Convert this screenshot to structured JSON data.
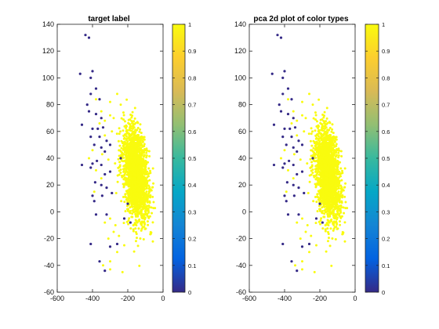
{
  "colormap": {
    "stops": [
      "#352a87",
      "#0363e1",
      "#1485d4",
      "#06a7c6",
      "#38b99e",
      "#92bf73",
      "#d9ba56",
      "#fcce2e",
      "#f9fb0e"
    ]
  },
  "chart_data": [
    {
      "type": "scatter",
      "title": "target label",
      "xlim": [
        -600,
        0
      ],
      "ylim": [
        -60,
        140
      ],
      "xticks": [
        "-600",
        "-400",
        "-200",
        "0"
      ],
      "yticks": [
        "-60",
        "-40",
        "-20",
        "0",
        "20",
        "40",
        "60",
        "80",
        "100",
        "120",
        "140"
      ],
      "colorbar_ticks": [
        "0",
        "0.1",
        "0.2",
        "0.3",
        "0.4",
        "0.5",
        "0.6",
        "0.7",
        "0.8",
        "0.9",
        "1"
      ],
      "clim": [
        0,
        1
      ],
      "grid": false,
      "marker_colors": {
        "0": "#352a87",
        "1": "#f9fb0e"
      },
      "series": [
        {
          "label_value": 0,
          "points": [
            [
              -440,
              132
            ],
            [
              -420,
              130
            ],
            [
              -470,
              103
            ],
            [
              -400,
              105
            ],
            [
              -410,
              100
            ],
            [
              -380,
              92
            ],
            [
              -410,
              88
            ],
            [
              -430,
              80
            ],
            [
              -360,
              84
            ],
            [
              -420,
              75
            ],
            [
              -380,
              73
            ],
            [
              -350,
              70
            ],
            [
              -460,
              65
            ],
            [
              -400,
              62
            ],
            [
              -370,
              62
            ],
            [
              -340,
              63
            ],
            [
              -410,
              56
            ],
            [
              -360,
              56
            ],
            [
              -390,
              50
            ],
            [
              -350,
              48
            ],
            [
              -320,
              53
            ],
            [
              -300,
              50
            ],
            [
              -330,
              45
            ],
            [
              -460,
              35
            ],
            [
              -400,
              36
            ],
            [
              -375,
              38
            ],
            [
              -410,
              33
            ],
            [
              -350,
              35
            ],
            [
              -300,
              30
            ],
            [
              -330,
              28
            ],
            [
              -385,
              22
            ],
            [
              -350,
              20
            ],
            [
              -320,
              18
            ],
            [
              -400,
              12
            ],
            [
              -345,
              12
            ],
            [
              -290,
              14
            ],
            [
              -380,
              -2
            ],
            [
              -320,
              -2
            ],
            [
              -410,
              -24
            ],
            [
              -360,
              -37
            ],
            [
              -330,
              -44
            ],
            [
              -260,
              -24
            ],
            [
              -300,
              -26
            ],
            [
              -200,
              6
            ],
            [
              -185,
              -8
            ],
            [
              -240,
              40
            ],
            [
              -220,
              -5
            ],
            [
              -390,
              8
            ]
          ]
        },
        {
          "label_value": 1,
          "center": [
            -155,
            28
          ],
          "count": 2200,
          "outliers": [
            [
              -380,
              84
            ],
            [
              -350,
              75
            ],
            [
              -330,
              68
            ],
            [
              -360,
              66
            ],
            [
              -300,
              82
            ],
            [
              -330,
              57
            ],
            [
              -400,
              46
            ],
            [
              -420,
              40
            ],
            [
              -380,
              31
            ],
            [
              -350,
              25
            ],
            [
              -390,
              15
            ],
            [
              -300,
              -5
            ],
            [
              -330,
              -8
            ],
            [
              -280,
              -15
            ],
            [
              -310,
              -20
            ],
            [
              -260,
              -30
            ],
            [
              -300,
              -37
            ],
            [
              -340,
              -40
            ],
            [
              -250,
              -18
            ],
            [
              -270,
              -10
            ],
            [
              -345,
              43
            ],
            [
              -310,
              39
            ],
            [
              -290,
              60
            ],
            [
              -280,
              70
            ],
            [
              -300,
              72
            ],
            [
              -240,
              80
            ],
            [
              -260,
              88
            ],
            [
              -230,
              -45
            ],
            [
              -300,
              -43
            ],
            [
              -220,
              -25
            ]
          ]
        }
      ]
    },
    {
      "type": "scatter",
      "title": "pca 2d plot of color types",
      "xlim": [
        -600,
        0
      ],
      "ylim": [
        -60,
        140
      ],
      "xticks": [
        "-600",
        "-400",
        "-200",
        "0"
      ],
      "yticks": [
        "-60",
        "-40",
        "-20",
        "0",
        "20",
        "40",
        "60",
        "80",
        "100",
        "120",
        "140"
      ],
      "colorbar_ticks": [
        "0",
        "0.1",
        "0.2",
        "0.3",
        "0.4",
        "0.5",
        "0.6",
        "0.7",
        "0.8",
        "0.9",
        "1"
      ],
      "clim": [
        0,
        1
      ],
      "grid": false,
      "marker_colors": {
        "0": "#352a87",
        "1": "#f9fb0e"
      },
      "series": [
        {
          "label_value": 0,
          "points": [
            [
              -440,
              132
            ],
            [
              -420,
              130
            ],
            [
              -470,
              103
            ],
            [
              -400,
              105
            ],
            [
              -410,
              100
            ],
            [
              -380,
              92
            ],
            [
              -410,
              88
            ],
            [
              -430,
              80
            ],
            [
              -360,
              84
            ],
            [
              -420,
              75
            ],
            [
              -380,
              73
            ],
            [
              -350,
              70
            ],
            [
              -460,
              65
            ],
            [
              -400,
              62
            ],
            [
              -370,
              62
            ],
            [
              -340,
              63
            ],
            [
              -410,
              56
            ],
            [
              -360,
              56
            ],
            [
              -390,
              50
            ],
            [
              -350,
              48
            ],
            [
              -320,
              53
            ],
            [
              -300,
              50
            ],
            [
              -330,
              45
            ],
            [
              -460,
              35
            ],
            [
              -400,
              36
            ],
            [
              -375,
              38
            ],
            [
              -410,
              33
            ],
            [
              -350,
              35
            ],
            [
              -300,
              30
            ],
            [
              -330,
              28
            ],
            [
              -385,
              22
            ],
            [
              -350,
              20
            ],
            [
              -320,
              18
            ],
            [
              -400,
              12
            ],
            [
              -345,
              12
            ],
            [
              -290,
              14
            ],
            [
              -380,
              -2
            ],
            [
              -320,
              -2
            ],
            [
              -410,
              -24
            ],
            [
              -360,
              -37
            ],
            [
              -330,
              -44
            ],
            [
              -260,
              -24
            ],
            [
              -300,
              -26
            ],
            [
              -200,
              6
            ],
            [
              -185,
              -8
            ],
            [
              -240,
              40
            ],
            [
              -220,
              -5
            ],
            [
              -390,
              8
            ]
          ]
        },
        {
          "label_value": 1,
          "center": [
            -155,
            28
          ],
          "count": 2200,
          "outliers": [
            [
              -380,
              84
            ],
            [
              -350,
              75
            ],
            [
              -330,
              68
            ],
            [
              -360,
              66
            ],
            [
              -300,
              82
            ],
            [
              -330,
              57
            ],
            [
              -400,
              46
            ],
            [
              -420,
              40
            ],
            [
              -380,
              31
            ],
            [
              -350,
              25
            ],
            [
              -390,
              15
            ],
            [
              -300,
              -5
            ],
            [
              -330,
              -8
            ],
            [
              -280,
              -15
            ],
            [
              -310,
              -20
            ],
            [
              -260,
              -30
            ],
            [
              -300,
              -37
            ],
            [
              -340,
              -40
            ],
            [
              -250,
              -18
            ],
            [
              -270,
              -10
            ],
            [
              -345,
              43
            ],
            [
              -310,
              39
            ],
            [
              -290,
              60
            ],
            [
              -280,
              70
            ],
            [
              -300,
              72
            ],
            [
              -240,
              80
            ],
            [
              -260,
              88
            ],
            [
              -230,
              -45
            ],
            [
              -300,
              -43
            ],
            [
              -220,
              -25
            ]
          ]
        }
      ]
    }
  ]
}
